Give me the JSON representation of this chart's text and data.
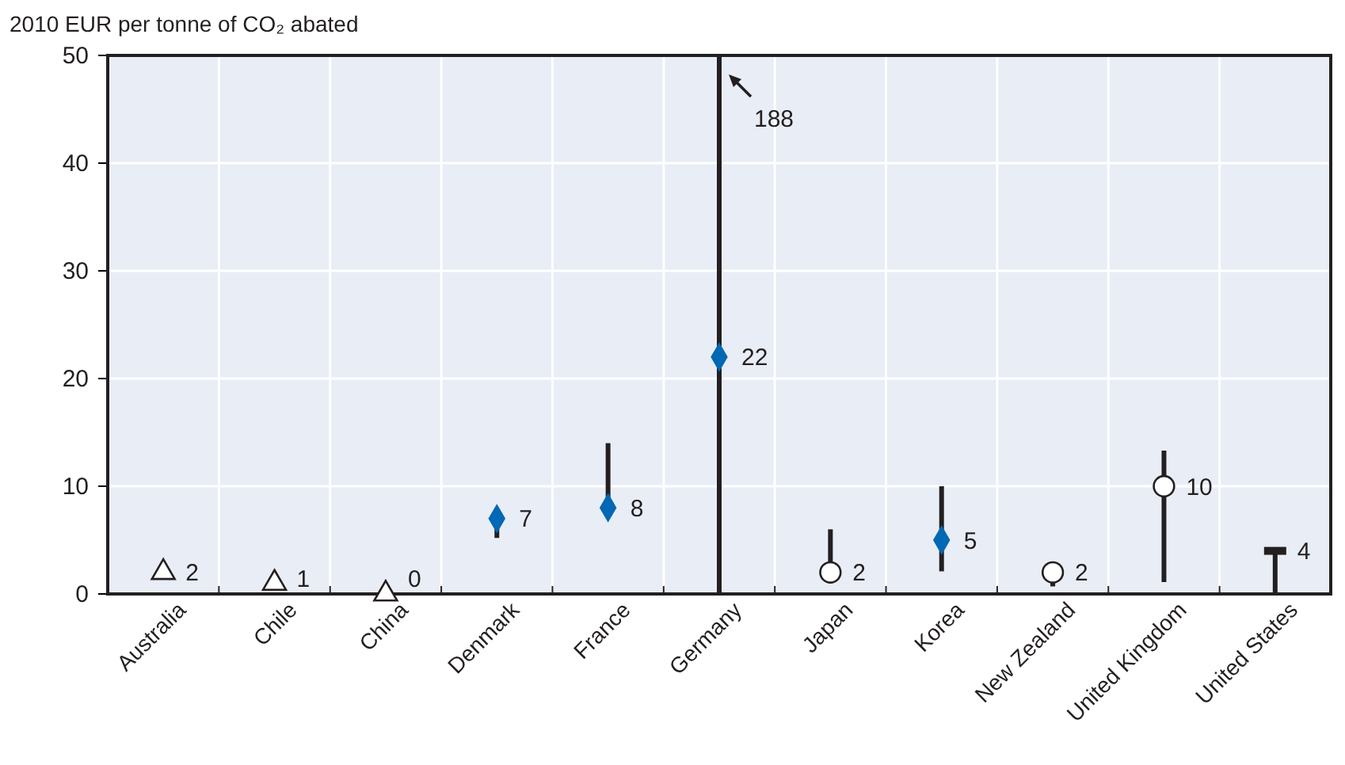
{
  "chart_data": {
    "type": "scatter",
    "ylabel": "2010 EUR per tonne of CO₂ abated",
    "categories": [
      "Australia",
      "Chile",
      "China",
      "Denmark",
      "France",
      "Germany",
      "Japan",
      "Korea",
      "New Zealand",
      "United Kingdom",
      "United States"
    ],
    "ylim": [
      0,
      50
    ],
    "yticks": [
      0,
      10,
      20,
      30,
      40,
      50
    ],
    "grid": true,
    "series": [
      {
        "color": "#ffffff",
        "marker": "triangle",
        "values": [
          2,
          1,
          0,
          null,
          null,
          null,
          null,
          null,
          null,
          null,
          null
        ],
        "value_labels": [
          "2",
          "1",
          "0",
          null,
          null,
          null,
          null,
          null,
          null,
          null,
          null
        ]
      },
      {
        "color": "#0068b4",
        "marker": "diamond",
        "values": [
          null,
          null,
          null,
          7,
          8,
          22,
          null,
          5,
          null,
          null,
          null
        ],
        "errors": [
          null,
          null,
          null,
          [
            5.2,
            7.4
          ],
          [
            7.8,
            14
          ],
          [
            0,
            50
          ],
          null,
          [
            2.1,
            10
          ],
          null,
          null,
          null
        ],
        "value_labels": [
          null,
          null,
          null,
          "7",
          "8",
          "22",
          null,
          "5",
          null,
          null,
          null
        ]
      },
      {
        "color": "#ffffff",
        "marker": "circle",
        "values": [
          null,
          null,
          null,
          null,
          null,
          null,
          2,
          null,
          2,
          10,
          null
        ],
        "errors": [
          null,
          null,
          null,
          null,
          null,
          null,
          [
            2,
            6
          ],
          null,
          [
            0.7,
            2
          ],
          [
            1.1,
            13.3
          ],
          null
        ],
        "value_labels": [
          null,
          null,
          null,
          null,
          null,
          null,
          "2",
          null,
          "2",
          "10",
          null
        ]
      },
      {
        "color": "#231f20",
        "values": [
          null,
          null,
          null,
          null,
          null,
          null,
          null,
          null,
          null,
          null,
          4
        ],
        "errors": [
          null,
          null,
          null,
          null,
          null,
          null,
          null,
          null,
          null,
          null,
          [
            0,
            4
          ]
        ],
        "value_labels": [
          null,
          null,
          null,
          null,
          null,
          null,
          null,
          null,
          null,
          null,
          "4"
        ]
      }
    ],
    "annotations": [
      "188"
    ]
  }
}
